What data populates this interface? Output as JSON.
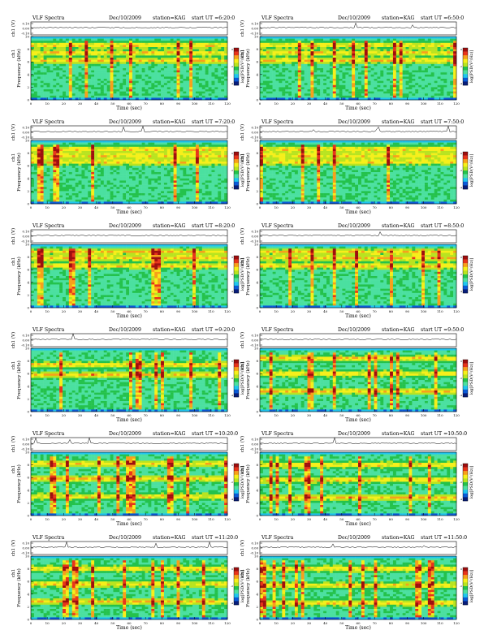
{
  "page": {
    "panel_title": "VLF Spectra",
    "date": "Dec/10/2009",
    "station": "station=KAG",
    "start_prefix": "start  UT =",
    "time_label": "Time (sec)",
    "freq_label": "Frequency (kHz)",
    "channel_label": "ch1",
    "amplitude_label": "ch1 (V)",
    "colorbar_label": "log[PSD(V²/Hz)]"
  },
  "chart_data": [
    {
      "type": "heatmap",
      "start_ut": "6:20:0",
      "band_centers_khz": [
        6.2,
        7.4,
        8.6
      ],
      "spike_density": 0.35
    },
    {
      "type": "heatmap",
      "start_ut": "6:50:0",
      "band_centers_khz": [
        6.2,
        7.4,
        8.6
      ],
      "spike_density": 0.35
    },
    {
      "type": "heatmap",
      "start_ut": "7:20:0",
      "band_centers_khz": [
        6.6,
        7.6,
        8.6
      ],
      "spike_density": 0.45
    },
    {
      "type": "heatmap",
      "start_ut": "7:50:0",
      "band_centers_khz": [
        6.6,
        7.6,
        8.6
      ],
      "spike_density": 0.45
    },
    {
      "type": "heatmap",
      "start_ut": "8:20:0",
      "band_centers_khz": [
        6.6,
        7.8,
        8.8
      ],
      "spike_density": 0.55
    },
    {
      "type": "heatmap",
      "start_ut": "8:50:0",
      "band_centers_khz": [
        6.6,
        7.8,
        8.8
      ],
      "spike_density": 0.55
    },
    {
      "type": "heatmap",
      "start_ut": "9:20:0",
      "band_centers_khz": [
        5.8,
        7.4
      ],
      "spike_density": 0.55
    },
    {
      "type": "heatmap",
      "start_ut": "9:50:0",
      "band_centers_khz": [
        3.2,
        6.0,
        8.4
      ],
      "spike_density": 0.65
    },
    {
      "type": "heatmap",
      "start_ut": "10:20:0",
      "band_centers_khz": [
        3.0,
        5.8,
        8.2
      ],
      "spike_density": 0.6
    },
    {
      "type": "heatmap",
      "start_ut": "10:50:0",
      "band_centers_khz": [
        2.8,
        5.6,
        8.0
      ],
      "spike_density": 0.6
    },
    {
      "type": "heatmap",
      "start_ut": "11:20:0",
      "band_centers_khz": [
        2.8,
        5.6,
        8.0
      ],
      "spike_density": 0.6
    },
    {
      "type": "heatmap",
      "start_ut": "11:50:0",
      "band_centers_khz": [
        2.6,
        5.4,
        8.0
      ],
      "spike_density": 0.65
    }
  ],
  "axes": {
    "x_ticks": [
      "0",
      "10",
      "20",
      "30",
      "40",
      "50",
      "60",
      "70",
      "80",
      "90",
      "100",
      "110",
      "120"
    ],
    "x_range": [
      0,
      120
    ],
    "y_ticks": [
      "0",
      "2",
      "4",
      "6",
      "8",
      "10"
    ],
    "y_range": [
      0,
      10
    ],
    "amp_ticks": [
      "0.10",
      "0.00",
      "-0.10"
    ],
    "cb_ticks": [
      "0",
      "-2",
      "-4"
    ]
  },
  "colors": {
    "colormap": [
      "#081d7a",
      "#0a5ad8",
      "#1fc5ef",
      "#4be0a0",
      "#24c24c",
      "#b8e420",
      "#f6ef1a",
      "#f8a01a",
      "#e8341a",
      "#9e0e0e"
    ]
  }
}
